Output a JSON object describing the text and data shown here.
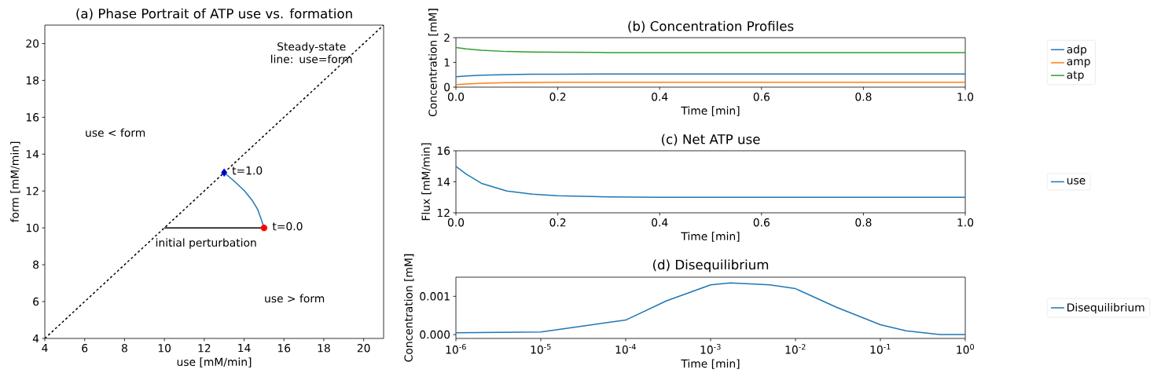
{
  "chart_data": [
    {
      "type": "line",
      "title": "(a) Phase Portrait of ATP use vs. formation",
      "xlabel": "use [mM/min]",
      "ylabel": "form [mM/min]",
      "xlim": [
        4,
        21
      ],
      "ylim": [
        4,
        21
      ],
      "xticks": [
        4,
        6,
        8,
        10,
        12,
        14,
        16,
        18,
        20
      ],
      "yticks": [
        4,
        6,
        8,
        10,
        12,
        14,
        16,
        18,
        20
      ],
      "series": [
        {
          "type": "line",
          "color": "#000000",
          "line_style": "dashed",
          "x": [
            4,
            21
          ],
          "values": [
            4,
            21
          ]
        },
        {
          "type": "line",
          "color": "#000000",
          "line_style": "solid",
          "x": [
            10,
            14.85
          ],
          "values": [
            10,
            10
          ]
        },
        {
          "type": "line",
          "color": "#1f77b4",
          "line_style": "solid",
          "x": [
            15,
            14.85,
            14.68,
            14.4,
            14.03,
            13.54,
            13
          ],
          "values": [
            10,
            10.5,
            11,
            11.5,
            12,
            12.5,
            13
          ]
        },
        {
          "type": "scatter",
          "color": "#ff0000",
          "marker": "circle",
          "x": [
            15
          ],
          "values": [
            10
          ]
        },
        {
          "type": "scatter",
          "color": "#0000cd",
          "marker": "diamond",
          "x": [
            13
          ],
          "values": [
            13
          ]
        }
      ],
      "annotations": [
        "Steady-state line: use=form",
        "use < form",
        "use > form",
        "t=1.0",
        "t=0.0",
        "initial perturbation"
      ]
    },
    {
      "type": "line",
      "title": "(b) Concentration Profiles",
      "xlabel": "Time [min]",
      "ylabel": "Concentration [mM]",
      "xlim": [
        0,
        1
      ],
      "ylim": [
        0,
        2
      ],
      "xticks": [
        {
          "value": 0,
          "label": "0.0"
        },
        {
          "value": 0.2,
          "label": "0.2"
        },
        {
          "value": 0.4,
          "label": "0.4"
        },
        {
          "value": 0.6,
          "label": "0.6"
        },
        {
          "value": 0.8,
          "label": "0.8"
        },
        {
          "value": 1,
          "label": "1.0"
        }
      ],
      "yticks": [
        0,
        1,
        2
      ],
      "legend": "right",
      "x": [
        0,
        0.02,
        0.05,
        0.1,
        0.15,
        0.2,
        0.3,
        0.5,
        1.0
      ],
      "series": [
        {
          "name": "adp",
          "color": "#1f77b4",
          "values": [
            0.42,
            0.45,
            0.48,
            0.51,
            0.52,
            0.525,
            0.53,
            0.53,
            0.53
          ]
        },
        {
          "name": "amp",
          "color": "#ff7f0e",
          "values": [
            0.1,
            0.13,
            0.16,
            0.18,
            0.19,
            0.2,
            0.2,
            0.2,
            0.2
          ]
        },
        {
          "name": "atp",
          "color": "#2ca02c",
          "values": [
            1.6,
            1.55,
            1.49,
            1.44,
            1.42,
            1.41,
            1.4,
            1.4,
            1.4
          ]
        }
      ]
    },
    {
      "type": "line",
      "title": "(c) Net ATP use",
      "xlabel": "Time [min]",
      "ylabel": "Flux [mM/min]",
      "xlim": [
        0,
        1
      ],
      "ylim": [
        12,
        16
      ],
      "xticks": [
        {
          "value": 0,
          "label": "0.0"
        },
        {
          "value": 0.2,
          "label": "0.2"
        },
        {
          "value": 0.4,
          "label": "0.4"
        },
        {
          "value": 0.6,
          "label": "0.6"
        },
        {
          "value": 0.8,
          "label": "0.8"
        },
        {
          "value": 1,
          "label": "1.0"
        }
      ],
      "yticks": [
        12,
        14,
        16
      ],
      "legend": "right",
      "x": [
        0,
        0.02,
        0.05,
        0.1,
        0.15,
        0.2,
        0.3,
        0.4,
        1.0
      ],
      "series": [
        {
          "name": "use",
          "color": "#1f77b4",
          "values": [
            15,
            14.5,
            13.9,
            13.4,
            13.2,
            13.1,
            13.03,
            13.0,
            13.0
          ]
        }
      ]
    },
    {
      "type": "line",
      "title": "(d) Disequilibrium",
      "xlabel": "Time [min]",
      "ylabel": "Concentration [mM]",
      "log": "x",
      "xlim": [
        1e-06,
        1
      ],
      "ylim": [
        -0.0001,
        0.0015
      ],
      "xticks": [
        {
          "value": 1e-06,
          "label": "10$^{-6}$"
        },
        {
          "value": 1e-05,
          "label": "10$^{-5}$"
        },
        {
          "value": 0.0001,
          "label": "10$^{-4}$"
        },
        {
          "value": 0.001,
          "label": "10$^{-3}$"
        },
        {
          "value": 0.01,
          "label": "10$^{-2}$"
        },
        {
          "value": 0.1,
          "label": "10$^{-1}$"
        },
        {
          "value": 1,
          "label": "10$^{0}$"
        }
      ],
      "yticks": [
        {
          "value": 0,
          "label": "0.000"
        },
        {
          "value": 0.001,
          "label": "0.001"
        }
      ],
      "legend": "right",
      "x": [
        1e-06,
        1e-05,
        3e-05,
        0.0001,
        0.0003,
        0.001,
        0.0017,
        0.005,
        0.01,
        0.03,
        0.1,
        0.2,
        0.5,
        1
      ],
      "series": [
        {
          "name": "Disequilibrium",
          "color": "#1f77b4",
          "values": [
            5e-05,
            7e-05,
            0.00022,
            0.00038,
            0.00088,
            0.0013,
            0.00135,
            0.0013,
            0.0012,
            0.00072,
            0.00026,
            0.0001,
            0.0,
            0.0
          ]
        }
      ]
    }
  ]
}
